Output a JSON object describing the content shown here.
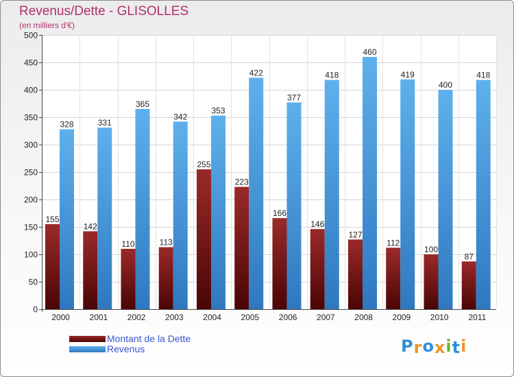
{
  "chart_data": {
    "type": "bar",
    "title": "Revenus/Dette - GLISOLLES",
    "subtitle": "(en milliers d'€)",
    "categories": [
      "2000",
      "2001",
      "2002",
      "2003",
      "2004",
      "2005",
      "2006",
      "2007",
      "2008",
      "2009",
      "2010",
      "2011"
    ],
    "series": [
      {
        "name": "Montant de la Dette",
        "values": [
          155,
          142,
          110,
          113,
          255,
          223,
          166,
          146,
          127,
          112,
          100,
          87
        ],
        "color": "#7a1010"
      },
      {
        "name": "Revenus",
        "values": [
          328,
          331,
          365,
          342,
          353,
          422,
          377,
          418,
          460,
          419,
          400,
          418
        ],
        "color": "#4a9fe0"
      }
    ],
    "ylim": [
      0,
      500
    ],
    "yticks": [
      0,
      50,
      100,
      150,
      200,
      250,
      300,
      350,
      400,
      450,
      500
    ],
    "grid": true,
    "legend": "bottom-left"
  },
  "logo": {
    "text": "Proxiti",
    "colors": [
      "#2f8fd8",
      "#e8962a",
      "#2f8fd8",
      "#e8962a",
      "#6ab830",
      "#2f8fd8",
      "#e8962a"
    ]
  }
}
